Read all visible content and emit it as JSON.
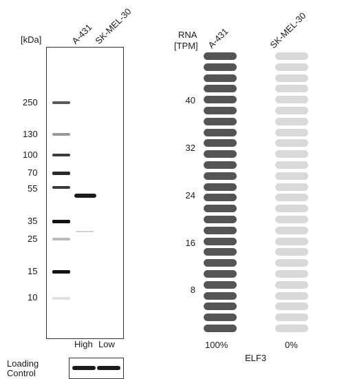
{
  "blot": {
    "unit_label": "[kDa]",
    "lanes": [
      "A-431",
      "SK-MEL-30"
    ],
    "markers": [
      "250",
      "130",
      "100",
      "70",
      "55",
      "35",
      "25",
      "15",
      "10"
    ],
    "expression_labels": [
      "High",
      "Low"
    ],
    "loading_control_label_line1": "Loading",
    "loading_control_label_line2": "Control"
  },
  "rna": {
    "axis_title_line1": "RNA",
    "axis_title_line2": "[TPM]",
    "samples": [
      "A-431",
      "SK-MEL-30"
    ],
    "ticks": [
      "40",
      "32",
      "24",
      "16",
      "8"
    ],
    "percentages": [
      "100%",
      "0%"
    ],
    "gene": "ELF3",
    "bar_count": 26,
    "filled_fraction": [
      1.0,
      0.0
    ],
    "colors": {
      "filled": "#555555",
      "empty": "#d9d9d9"
    }
  }
}
